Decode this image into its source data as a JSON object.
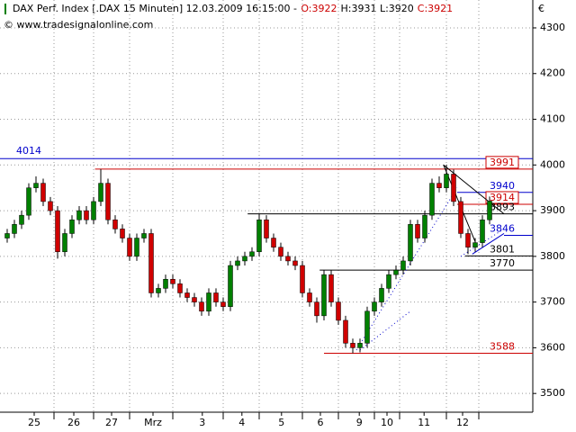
{
  "chart_data": {
    "type": "candlestick",
    "header": [
      "DAX Perf. Index [.DAX  15 Minuten] 12.03.2009 16:15:00 -",
      "O:3922",
      "H:3931 L:3920",
      "C:3921"
    ],
    "header_colors": [
      "#000000",
      "#cc0000",
      "#000000",
      "#cc0000"
    ],
    "copyright": "© www.tradesignalonline.com",
    "currency": "€",
    "x": [
      1,
      2,
      3,
      4,
      5,
      6,
      7,
      8,
      9,
      10,
      11,
      12,
      13,
      14,
      15,
      16,
      17,
      18,
      19,
      20,
      21,
      22,
      23,
      24,
      25,
      26,
      27,
      28,
      29,
      30,
      31,
      32,
      33,
      34,
      35,
      36,
      37,
      38,
      39,
      40,
      41,
      42,
      43,
      44,
      45,
      46,
      47,
      48,
      49,
      50,
      51,
      52,
      53,
      54,
      55,
      56,
      57,
      58,
      59,
      60,
      61,
      62,
      63,
      64,
      65,
      66,
      67,
      68
    ],
    "open": [
      3840,
      3850,
      3870,
      3890,
      3950,
      3960,
      3920,
      3900,
      3810,
      3850,
      3880,
      3900,
      3880,
      3920,
      3960,
      3880,
      3860,
      3840,
      3800,
      3840,
      3850,
      3720,
      3730,
      3750,
      3740,
      3720,
      3710,
      3700,
      3680,
      3720,
      3700,
      3690,
      3780,
      3790,
      3800,
      3810,
      3880,
      3840,
      3820,
      3800,
      3790,
      3780,
      3720,
      3700,
      3670,
      3760,
      3700,
      3660,
      3610,
      3600,
      3610,
      3680,
      3700,
      3730,
      3760,
      3770,
      3790,
      3870,
      3840,
      3890,
      3960,
      3950,
      3980,
      3920,
      3850,
      3820,
      3830,
      3880
    ],
    "high": [
      3860,
      3880,
      3900,
      3960,
      3975,
      3970,
      3930,
      3910,
      3860,
      3890,
      3910,
      3910,
      3930,
      3991,
      3970,
      3890,
      3870,
      3850,
      3850,
      3860,
      3860,
      3740,
      3760,
      3760,
      3750,
      3730,
      3720,
      3710,
      3730,
      3730,
      3710,
      3790,
      3800,
      3810,
      3820,
      3893,
      3890,
      3850,
      3830,
      3810,
      3800,
      3790,
      3730,
      3710,
      3770,
      3770,
      3710,
      3670,
      3620,
      3620,
      3690,
      3710,
      3740,
      3770,
      3780,
      3800,
      3880,
      3880,
      3900,
      3970,
      3975,
      4000,
      3990,
      3930,
      3860,
      3840,
      3890,
      3931
    ],
    "low": [
      3830,
      3840,
      3860,
      3880,
      3940,
      3910,
      3890,
      3795,
      3800,
      3840,
      3870,
      3870,
      3870,
      3910,
      3870,
      3850,
      3830,
      3790,
      3790,
      3830,
      3710,
      3710,
      3720,
      3730,
      3710,
      3700,
      3690,
      3670,
      3670,
      3690,
      3680,
      3680,
      3770,
      3780,
      3790,
      3800,
      3830,
      3810,
      3790,
      3780,
      3770,
      3710,
      3690,
      3655,
      3660,
      3690,
      3650,
      3600,
      3588,
      3590,
      3600,
      3670,
      3690,
      3720,
      3750,
      3760,
      3780,
      3830,
      3830,
      3880,
      3940,
      3940,
      3910,
      3840,
      3805,
      3810,
      3820,
      3870
    ],
    "close": [
      3850,
      3870,
      3890,
      3950,
      3960,
      3920,
      3900,
      3810,
      3850,
      3880,
      3900,
      3880,
      3920,
      3960,
      3880,
      3860,
      3840,
      3800,
      3840,
      3850,
      3720,
      3730,
      3750,
      3740,
      3720,
      3710,
      3700,
      3680,
      3720,
      3700,
      3690,
      3780,
      3790,
      3800,
      3810,
      3880,
      3840,
      3820,
      3800,
      3790,
      3780,
      3720,
      3700,
      3670,
      3760,
      3700,
      3660,
      3610,
      3600,
      3610,
      3680,
      3700,
      3730,
      3760,
      3770,
      3790,
      3870,
      3840,
      3890,
      3960,
      3950,
      3980,
      3920,
      3850,
      3820,
      3830,
      3880,
      3921
    ],
    "up_color": "#008000",
    "down_color": "#d00000",
    "xlim": [
      0,
      74
    ],
    "ylim": [
      3459,
      4361
    ],
    "yticks": [
      3500,
      3600,
      3700,
      3800,
      3900,
      4000,
      4100,
      4200,
      4300
    ],
    "xticks": [
      {
        "value": 4.75,
        "label": "25"
      },
      {
        "value": 10.25,
        "label": "26"
      },
      {
        "value": 15.5,
        "label": "27"
      },
      {
        "value": 21.25,
        "label": "Mrz"
      },
      {
        "value": 28.1,
        "label": "3"
      },
      {
        "value": 33.6,
        "label": "4"
      },
      {
        "value": 39.1,
        "label": "5"
      },
      {
        "value": 44.5,
        "label": "6"
      },
      {
        "value": 49.9,
        "label": "9"
      },
      {
        "value": 53.75,
        "label": "10"
      },
      {
        "value": 58.9,
        "label": "11"
      },
      {
        "value": 64.25,
        "label": "12"
      }
    ],
    "xgrid": [
      7.5,
      13,
      18,
      24,
      31,
      36,
      42,
      47,
      52,
      55.5,
      62,
      66.5
    ],
    "grid": true,
    "levels": [
      {
        "value": 4014,
        "color": "#0000cc",
        "x_start": 0,
        "label_side": "left"
      },
      {
        "value": 3991,
        "color": "#cc0000",
        "x_start": 13.2,
        "label_side": "right",
        "boxed": true
      },
      {
        "value": 3940,
        "color": "#0000cc",
        "x_start": 63.5,
        "label_side": "right"
      },
      {
        "value": 3914,
        "color": "#cc0000",
        "x_start": 63.5,
        "label_side": "right",
        "boxed": true
      },
      {
        "value": 3893,
        "color": "#000000",
        "x_start": 34.4,
        "label_side": "right"
      },
      {
        "value": 3846,
        "color": "#0000cc",
        "x_start": 70,
        "label_side": "right"
      },
      {
        "value": 3801,
        "color": "#000000",
        "x_start": 64.6,
        "label_side": "right"
      },
      {
        "value": 3770,
        "color": "#000000",
        "x_start": 44.4,
        "label_side": "right"
      },
      {
        "value": 3588,
        "color": "#cc0000",
        "x_start": 45,
        "label_side": "right"
      }
    ],
    "trendlines": [
      {
        "x": [
          49.5,
          63.5
        ],
        "y": [
          3595,
          3950
        ],
        "color": "#0000cc",
        "dotted": true
      },
      {
        "x": [
          50,
          57
        ],
        "y": [
          3595,
          3680
        ],
        "color": "#0000cc",
        "dotted": true
      },
      {
        "x": [
          64,
          70
        ],
        "y": [
          3800,
          3860
        ],
        "color": "#0000cc",
        "dotted": true
      },
      {
        "x": [
          61.6,
          66
        ],
        "y": [
          4000,
          3832
        ],
        "color": "#000000",
        "dotted": false
      },
      {
        "x": [
          61.6,
          70
        ],
        "y": [
          4000,
          3893
        ],
        "color": "#000000",
        "dotted": false
      },
      {
        "x": [
          65.6,
          70
        ],
        "y": [
          3805,
          3850
        ],
        "color": "#0000cc",
        "dotted": false
      }
    ]
  }
}
